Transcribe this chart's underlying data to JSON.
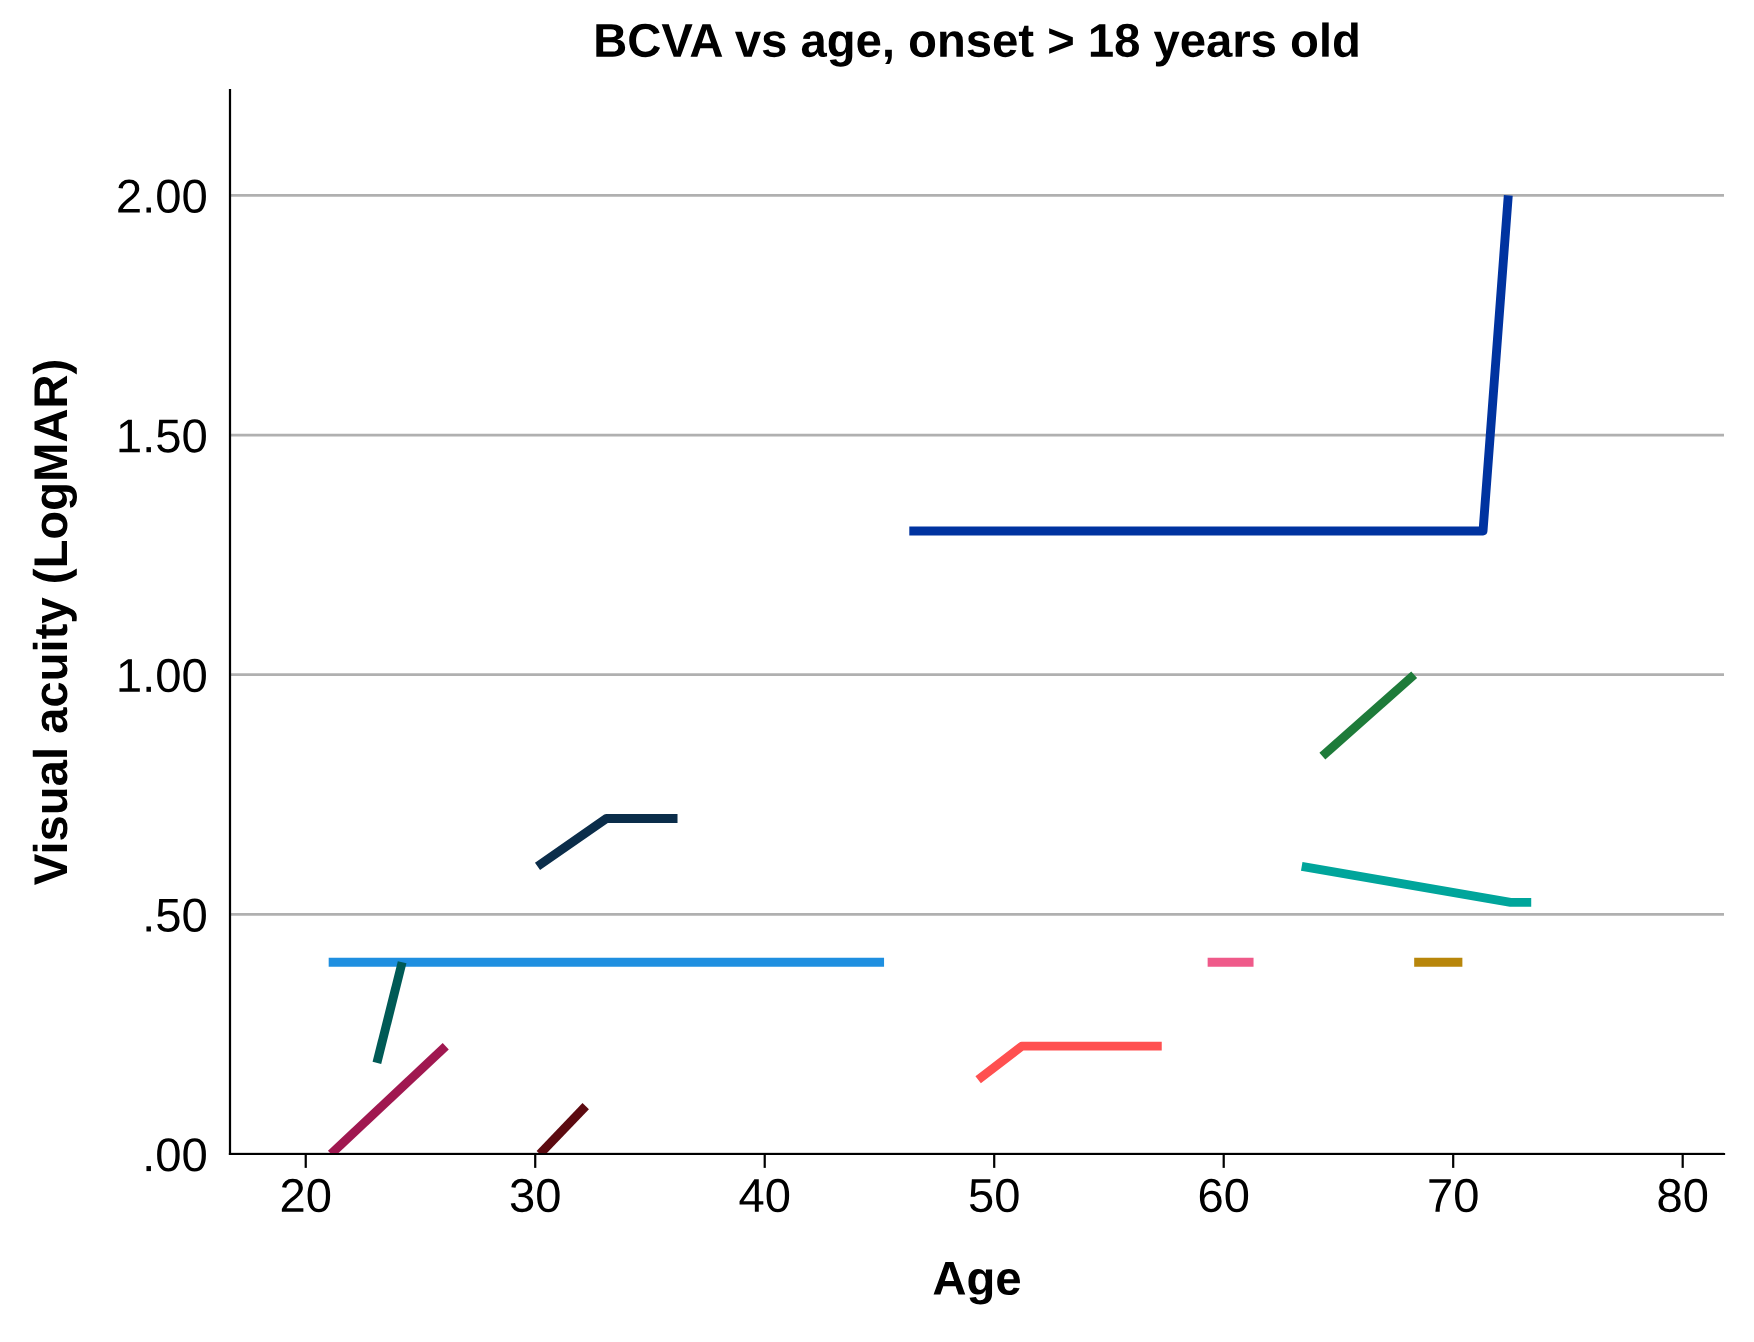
{
  "chart_data": {
    "type": "line",
    "title": "BCVA vs age, onset > 18 years old",
    "xlabel": "Age",
    "ylabel": "Visual acuity (LogMAR)",
    "xlim": [
      16.7,
      81.8
    ],
    "xticks": [
      20,
      30,
      40,
      50,
      60,
      70,
      80
    ],
    "ylim": [
      0,
      2.22
    ],
    "yticks": [
      {
        "value": 0,
        "label": ".00"
      },
      {
        "value": 0.5,
        "label": ".50"
      },
      {
        "value": 1,
        "label": "1.00"
      },
      {
        "value": 1.5,
        "label": "1.50"
      },
      {
        "value": 2,
        "label": "2.00"
      }
    ],
    "grid": "y",
    "legend": false,
    "marker": "none",
    "line_style": "solid",
    "series": [
      {
        "color": "#0033a0",
        "x": [
          46.3,
          71.3,
          72.4
        ],
        "values": [
          1.3,
          1.3,
          2.0
        ]
      },
      {
        "color": "#1e7b3a",
        "x": [
          64.3,
          68.3
        ],
        "values": [
          0.83,
          1.0
        ]
      },
      {
        "color": "#00a59b",
        "x": [
          63.4,
          72.5,
          73.4
        ],
        "values": [
          0.6,
          0.525,
          0.525
        ]
      },
      {
        "color": "#0b2d4a",
        "x": [
          30.1,
          33.1,
          36.2
        ],
        "values": [
          0.6,
          0.7,
          0.7
        ]
      },
      {
        "color": "#1f8fe0",
        "x": [
          21.0,
          45.2
        ],
        "values": [
          0.4,
          0.4
        ]
      },
      {
        "color": "#005a56",
        "x": [
          23.1,
          24.2
        ],
        "values": [
          0.19,
          0.4
        ]
      },
      {
        "color": "#a01850",
        "x": [
          21.1,
          26.1
        ],
        "values": [
          0,
          0.225
        ]
      },
      {
        "color": "#5c0a10",
        "x": [
          30.2,
          32.2
        ],
        "values": [
          0,
          0.1
        ]
      },
      {
        "color": "#ff5050",
        "x": [
          49.3,
          51.2,
          57.3
        ],
        "values": [
          0.155,
          0.225,
          0.225
        ]
      },
      {
        "color": "#ef5a8a",
        "x": [
          59.3,
          61.3
        ],
        "values": [
          0.4,
          0.4
        ]
      },
      {
        "color": "#b8860b",
        "x": [
          68.3,
          70.4
        ],
        "values": [
          0.4,
          0.4
        ]
      }
    ]
  }
}
